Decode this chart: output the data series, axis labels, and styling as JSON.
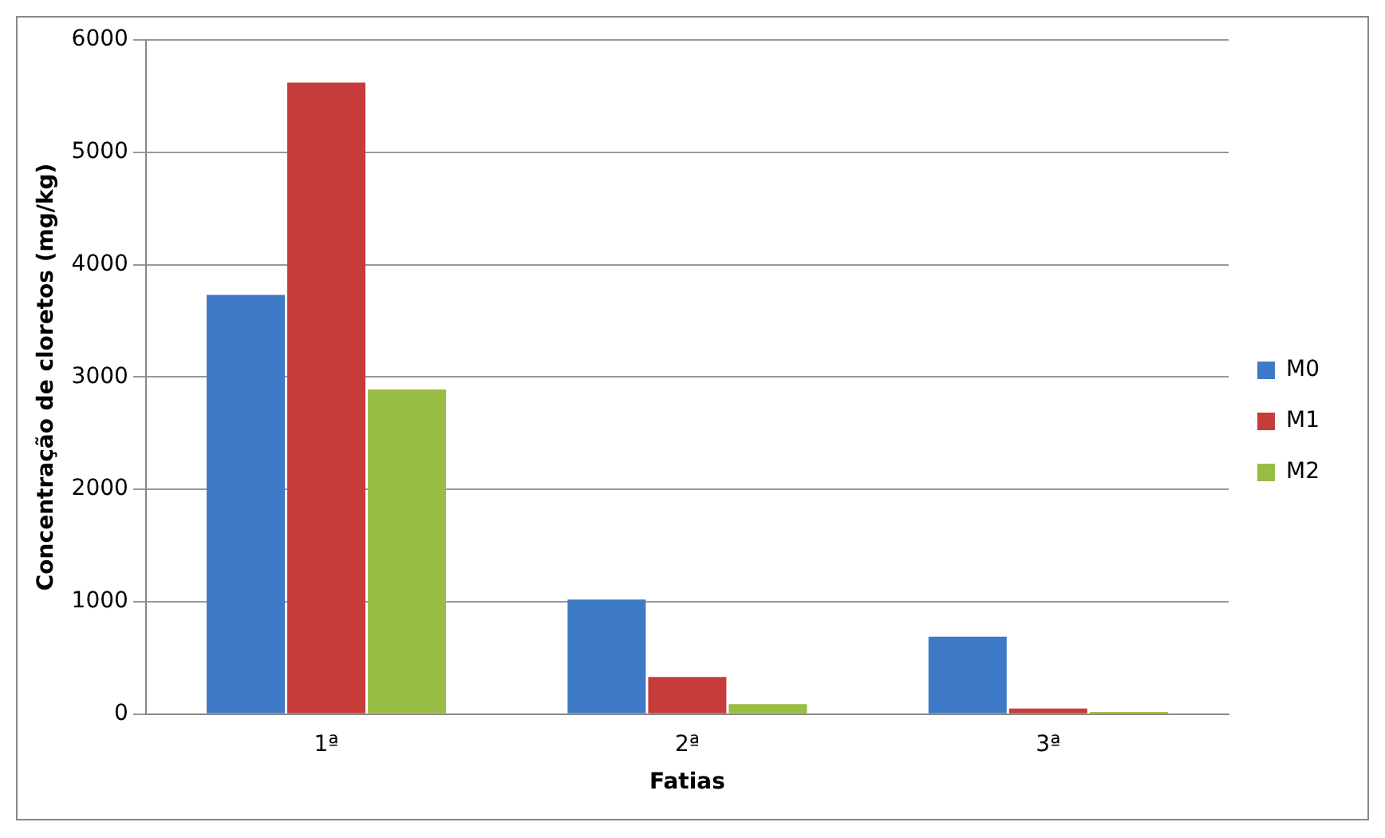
{
  "chart_data": {
    "type": "bar",
    "xlabel": "Fatias",
    "ylabel": "Concentração de cloretos (mg/kg)",
    "categories": [
      "1ª",
      "2ª",
      "3ª"
    ],
    "series": [
      {
        "name": "M0",
        "color": "#3f7ac6",
        "values": [
          3730,
          1020,
          690
        ]
      },
      {
        "name": "M1",
        "color": "#c63c3a",
        "values": [
          5620,
          330,
          50
        ]
      },
      {
        "name": "M2",
        "color": "#98bd45",
        "values": [
          2890,
          90,
          20
        ]
      }
    ],
    "ylim": [
      0,
      6000
    ],
    "yticks": [
      0,
      1000,
      2000,
      3000,
      4000,
      5000,
      6000
    ],
    "grid": "y",
    "legend": "right"
  }
}
